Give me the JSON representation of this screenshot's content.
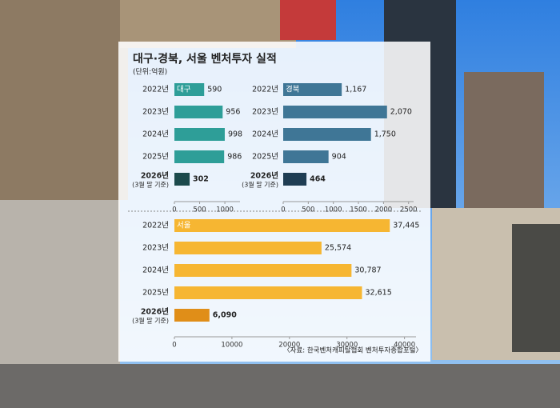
{
  "header": {
    "title": "대구·경북, 서울 벤처투자 실적",
    "unit": "(단위:억원)"
  },
  "note": "(3월 말 기준)",
  "source": "〈자료: 한국벤처캐피탈협회 벤처투자종합포털〉",
  "chart_data": [
    {
      "type": "bar",
      "orientation": "horizontal",
      "categories": [
        "2022년",
        "2023년",
        "2024년",
        "2025년",
        "2026년"
      ],
      "series": [
        {
          "name": "대구",
          "colors": [
            "#2e9e98",
            "#2e9e98",
            "#2e9e98",
            "#2e9e98",
            "#1c4a4c"
          ],
          "values": [
            590,
            956,
            998,
            986,
            302
          ]
        }
      ],
      "xlim": [
        0,
        1300
      ],
      "xticks": [
        0,
        500,
        1000
      ]
    },
    {
      "type": "bar",
      "orientation": "horizontal",
      "categories": [
        "2022년",
        "2023년",
        "2024년",
        "2025년",
        "2026년"
      ],
      "series": [
        {
          "name": "경북",
          "colors": [
            "#3f7696",
            "#3f7696",
            "#3f7696",
            "#3f7696",
            "#1f3d53"
          ],
          "values": [
            1167,
            2070,
            1750,
            904,
            464
          ],
          "value_labels": [
            "1,167",
            "2,070",
            "1,750",
            "904",
            "464"
          ]
        }
      ],
      "xlim": [
        0,
        2600
      ],
      "xticks": [
        0,
        500,
        1000,
        1500,
        2000,
        2500
      ]
    },
    {
      "type": "bar",
      "orientation": "horizontal",
      "categories": [
        "2022년",
        "2023년",
        "2024년",
        "2025년",
        "2026년"
      ],
      "series": [
        {
          "name": "서울",
          "colors": [
            "#f6b632",
            "#f6b632",
            "#f6b632",
            "#f6b632",
            "#e08e18"
          ],
          "values": [
            37445,
            25574,
            30787,
            32615,
            6090
          ],
          "value_labels": [
            "37,445",
            "25,574",
            "30,787",
            "32,615",
            "6,090"
          ]
        }
      ],
      "xlim": [
        0,
        42000
      ],
      "xticks": [
        0,
        10000,
        20000,
        30000,
        40000
      ]
    }
  ]
}
